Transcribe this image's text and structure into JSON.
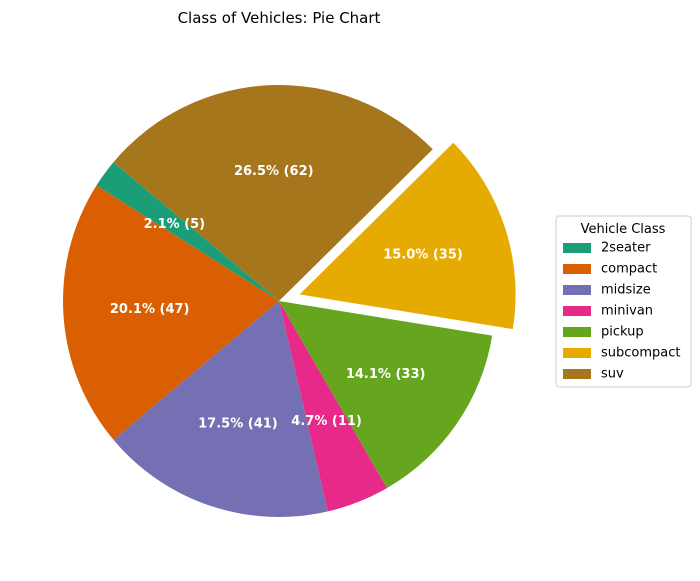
{
  "chart_data": {
    "type": "pie",
    "title": "Class of Vehicles: Pie Chart",
    "legend_title": "Vehicle Class",
    "legend_position": "center-right",
    "start_angle_deg": 140,
    "direction": "counterclockwise",
    "categories": [
      "2seater",
      "compact",
      "midsize",
      "minivan",
      "pickup",
      "subcompact",
      "suv"
    ],
    "values": [
      5,
      47,
      41,
      11,
      33,
      35,
      62
    ],
    "labels": [
      "2.1% (5)",
      "20.1% (47)",
      "17.5% (41)",
      "4.7% (11)",
      "14.1% (33)",
      "15.0% (35)",
      "26.5% (62)"
    ],
    "colors": [
      "#1b9e77",
      "#d95f02",
      "#7570b3",
      "#e7298a",
      "#66a61e",
      "#e6ab02",
      "#a6761d"
    ],
    "exploded": [
      "subcompact"
    ]
  }
}
